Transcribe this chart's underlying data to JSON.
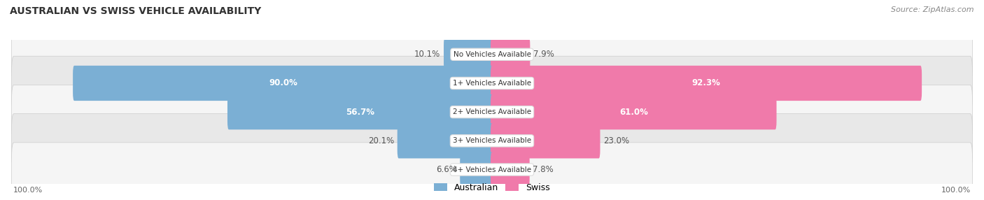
{
  "title": "AUSTRALIAN VS SWISS VEHICLE AVAILABILITY",
  "source": "Source: ZipAtlas.com",
  "categories": [
    "No Vehicles Available",
    "1+ Vehicles Available",
    "2+ Vehicles Available",
    "3+ Vehicles Available",
    "4+ Vehicles Available"
  ],
  "australian": [
    10.1,
    90.0,
    56.7,
    20.1,
    6.6
  ],
  "swiss": [
    7.9,
    92.3,
    61.0,
    23.0,
    7.8
  ],
  "australian_color": "#7bafd4",
  "swiss_color": "#f07aaa",
  "bar_height": 0.62,
  "background_color": "#ffffff",
  "row_bg_light": "#f5f5f5",
  "row_bg_dark": "#e8e8e8",
  "title_color": "#333333",
  "source_color": "#888888",
  "x_max": 100,
  "value_label_fontsize": 8.5,
  "category_label_fontsize": 7.5,
  "title_fontsize": 10,
  "source_fontsize": 8
}
